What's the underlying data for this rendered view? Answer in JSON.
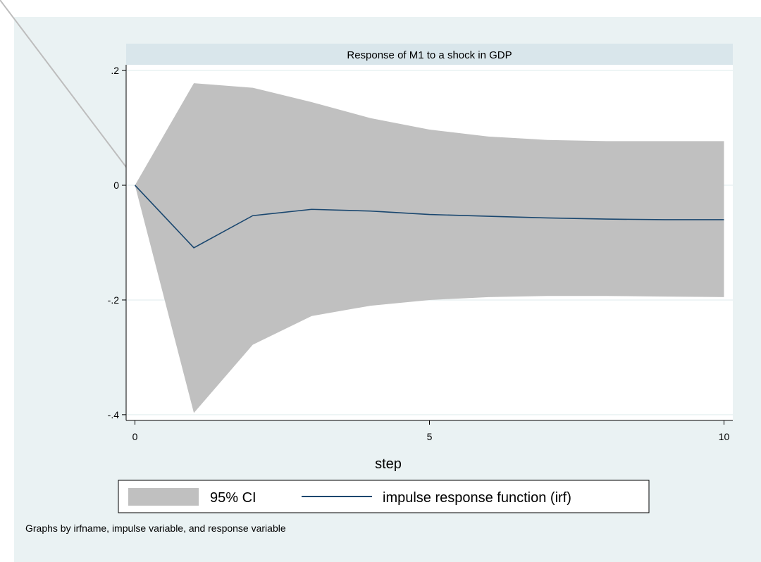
{
  "chart_data": {
    "type": "area",
    "panel_title": "Response of M1 to a shock in GDP",
    "xlabel": "step",
    "ylabel": "",
    "x": [
      0,
      1,
      2,
      3,
      4,
      5,
      6,
      7,
      8,
      9,
      10
    ],
    "xlim": [
      -0.15,
      10.15
    ],
    "ylim": [
      -0.41,
      0.21
    ],
    "xticks": [
      0,
      5,
      10
    ],
    "xtick_labels": [
      "0",
      "5",
      "10"
    ],
    "yticks": [
      -0.4,
      -0.2,
      0,
      0.2
    ],
    "ytick_labels": [
      "-.4",
      "-.2",
      "0",
      ".2"
    ],
    "grid": "horizontal",
    "series": [
      {
        "name": "95% CI",
        "kind": "band",
        "color": "#c0c0c0",
        "lower": [
          0,
          -0.397,
          -0.278,
          -0.228,
          -0.21,
          -0.2,
          -0.195,
          -0.193,
          -0.193,
          -0.194,
          -0.195
        ],
        "upper": [
          0,
          0.178,
          0.17,
          0.145,
          0.117,
          0.097,
          0.085,
          0.079,
          0.077,
          0.077,
          0.077
        ]
      },
      {
        "name": "impulse response function (irf)",
        "kind": "line",
        "color": "#1a476f",
        "values": [
          0,
          -0.109,
          -0.053,
          -0.042,
          -0.045,
          -0.051,
          -0.054,
          -0.057,
          -0.059,
          -0.06,
          -0.06
        ]
      }
    ],
    "legend": {
      "placement": "bottom",
      "entries": [
        "95% CI",
        "impulse response function (irf)"
      ]
    },
    "note": "Graphs by irfname, impulse variable, and response variable"
  },
  "colors": {
    "outer_background": "#eaf2f3",
    "plot_background": "#ffffff",
    "title_strip": "#d9e6eb",
    "gridline": "#eaf2f3",
    "axis": "#000000"
  }
}
